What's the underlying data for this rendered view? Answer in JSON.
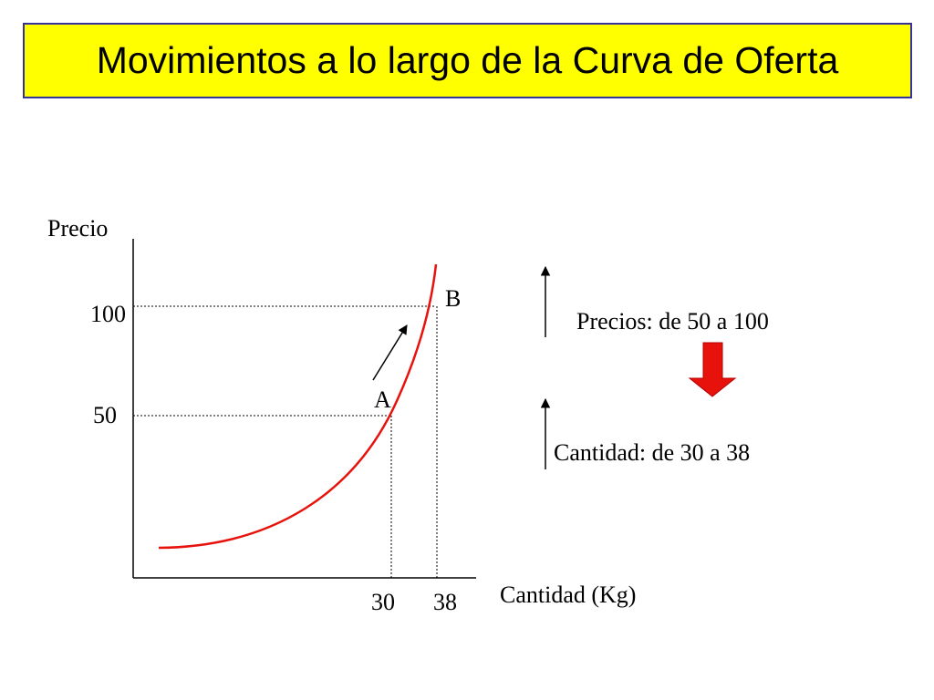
{
  "slide": {
    "title": "Movimientos a lo largo de la Curva de Oferta"
  },
  "chart_data": {
    "type": "line",
    "title": "",
    "ylabel": "Precio",
    "xlabel": "Cantidad (Kg)",
    "y_ticks": [
      "100",
      "50"
    ],
    "x_ticks": [
      "30",
      "38"
    ],
    "series": [
      {
        "curve": "supply",
        "color": "#e8120c"
      }
    ],
    "points": [
      {
        "label": "A",
        "x": 30,
        "y": 50
      },
      {
        "label": "B",
        "x": 38,
        "y": 100
      }
    ],
    "movement": "A → B"
  },
  "annotations": {
    "prices_text": "Precios: de 50 a 100",
    "quantity_text": "Cantidad: de 30 a 38",
    "cause_arrow_color": "#e8120c"
  }
}
